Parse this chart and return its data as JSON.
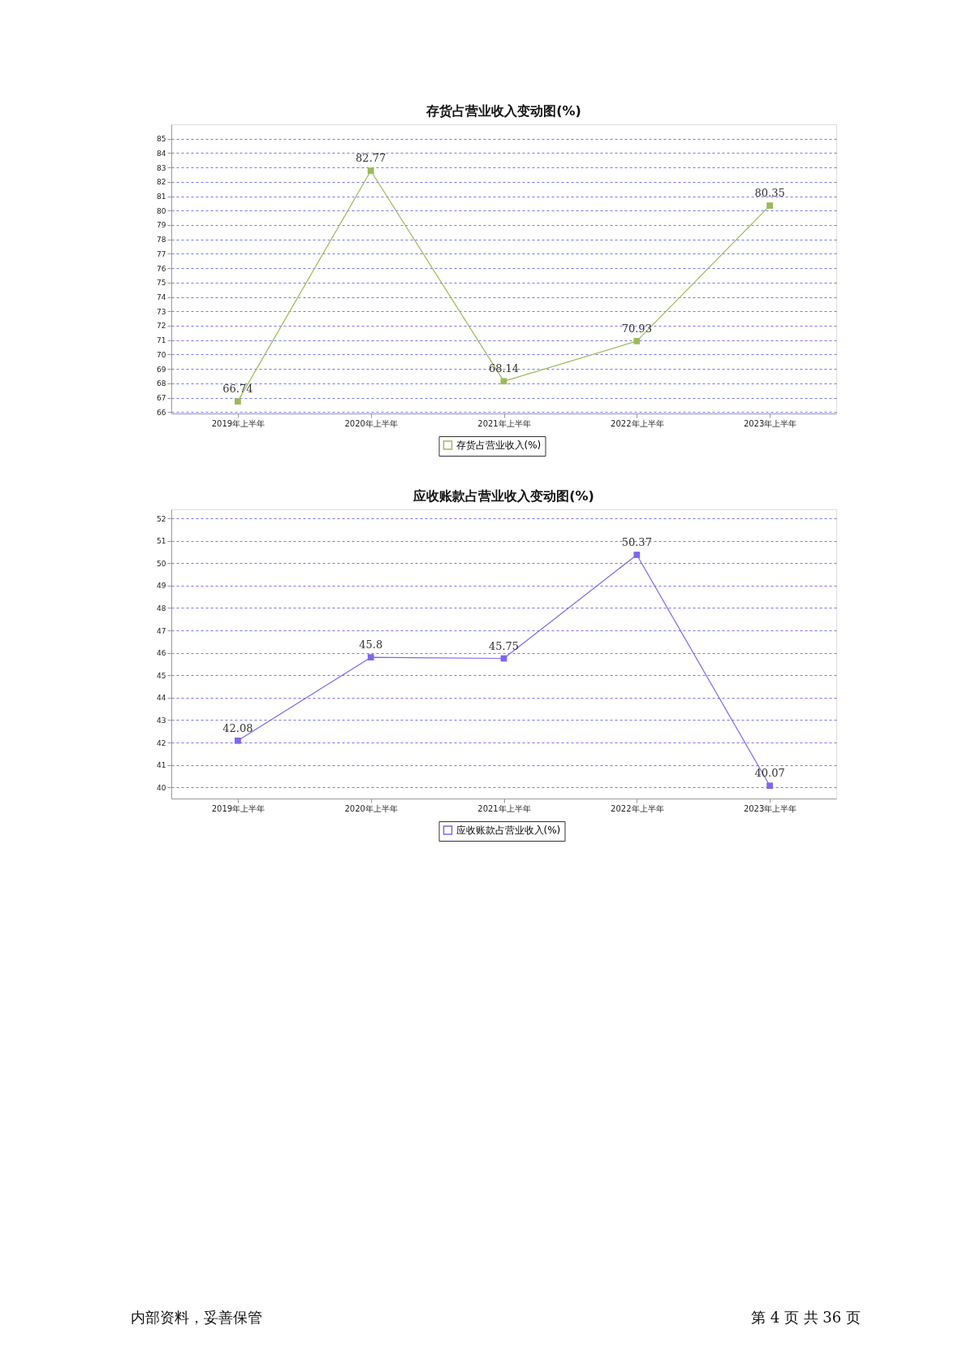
{
  "chart_data": [
    {
      "type": "line",
      "title": "存货占营业收入变动图(%)",
      "categories": [
        "2019年上半年",
        "2020年上半年",
        "2021年上半年",
        "2022年上半年",
        "2023年上半年"
      ],
      "series": [
        {
          "name": "存货占营业收入(%)",
          "color": "#9bbb59",
          "values": [
            66.74,
            82.77,
            68.14,
            70.93,
            80.35
          ]
        }
      ],
      "ylim": [
        65.9,
        86
      ],
      "yticks": [
        66,
        67,
        68,
        69,
        70,
        71,
        72,
        73,
        74,
        75,
        76,
        77,
        78,
        79,
        80,
        81,
        82,
        83,
        84,
        85
      ],
      "grid": "y",
      "legend": "bottom",
      "marker": "square",
      "line_style": "solid",
      "data_labels": true
    },
    {
      "type": "line",
      "title": "应收账款占营业收入变动图(%)",
      "categories": [
        "2019年上半年",
        "2020年上半年",
        "2021年上半年",
        "2022年上半年",
        "2023年上半年"
      ],
      "series": [
        {
          "name": "应收账款占营业收入(%)",
          "color": "#7b68ee",
          "values": [
            42.08,
            45.8,
            45.75,
            50.37,
            40.07
          ]
        }
      ],
      "ylim": [
        39.5,
        52.4
      ],
      "yticks": [
        40,
        41,
        42,
        43,
        44,
        45,
        46,
        47,
        48,
        49,
        50,
        51,
        52
      ],
      "grid": "y",
      "legend": "bottom",
      "marker": "square",
      "line_style": "solid",
      "data_labels": true,
      "annotations": [
        "内部资料，妥善保管",
        "第 4 页   共 36 页"
      ]
    }
  ]
}
